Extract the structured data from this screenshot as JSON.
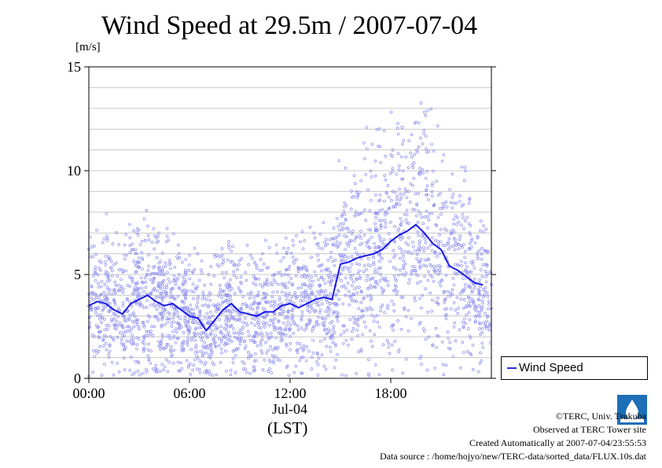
{
  "chart_data": {
    "type": "scatter",
    "title": "Wind Speed at 29.5m / 2007-07-04",
    "ylabel": "[m/s]",
    "xlabel": "(LST)",
    "date_label": "Jul-04",
    "x_ticks": [
      "00:00",
      "06:00",
      "12:00",
      "18:00"
    ],
    "y_ticks": [
      "0",
      "5",
      "10",
      "15"
    ],
    "xlim": [
      0,
      24
    ],
    "ylim": [
      0,
      15
    ],
    "grid": true,
    "legend_position": "right",
    "series": [
      {
        "name": "Wind Speed",
        "style": "line with scattered points",
        "color": "#1a1ae6",
        "point_color": "#8c8cf0",
        "x": [
          0,
          0.5,
          1,
          1.5,
          2,
          2.5,
          3,
          3.5,
          4,
          4.5,
          5,
          5.5,
          6,
          6.5,
          7,
          7.5,
          8,
          8.5,
          9,
          9.5,
          10,
          10.5,
          11,
          11.5,
          12,
          12.5,
          13,
          13.5,
          14,
          14.5,
          15,
          15.5,
          16,
          16.5,
          17,
          17.5,
          18,
          18.5,
          19,
          19.5,
          20,
          20.5,
          21,
          21.5,
          22,
          22.5,
          23,
          23.5
        ],
        "values": [
          3.5,
          3.7,
          3.6,
          3.3,
          3.1,
          3.6,
          3.8,
          4.0,
          3.7,
          3.5,
          3.6,
          3.3,
          3.0,
          2.9,
          2.3,
          2.8,
          3.3,
          3.6,
          3.2,
          3.1,
          3.0,
          3.2,
          3.2,
          3.5,
          3.6,
          3.4,
          3.6,
          3.8,
          3.9,
          3.8,
          5.5,
          5.6,
          5.8,
          5.9,
          6.0,
          6.2,
          6.6,
          6.9,
          7.1,
          7.4,
          7.0,
          6.5,
          6.2,
          5.4,
          5.2,
          4.9,
          4.6,
          4.5
        ]
      }
    ]
  },
  "legend": {
    "label": "Wind Speed"
  },
  "footer": {
    "copyright": "©TERC, Univ. Tsukuba",
    "site": "Observed at TERC Tower site",
    "created": "Created Automatically at 2007-07-04/23:55:53",
    "source": "Data source : /home/hojyo/new/TERC-data/sorted_data/FLUX.10s.dat"
  }
}
